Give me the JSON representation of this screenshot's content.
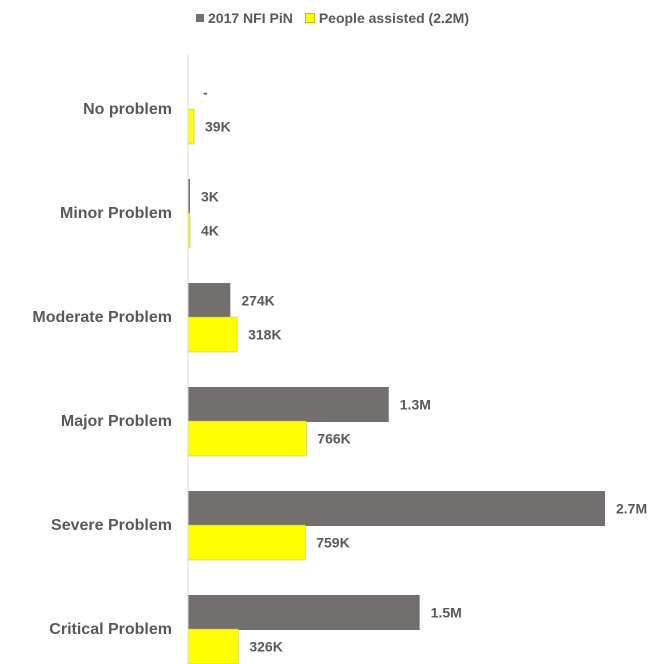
{
  "chart_data": {
    "type": "bar",
    "orientation": "horizontal",
    "categories": [
      "No problem",
      "Minor Problem",
      "Moderate Problem",
      "Major Problem",
      "Severe Problem",
      "Critical Problem"
    ],
    "series": [
      {
        "name": "2017 NFI PiN",
        "color": "#736f6e",
        "values": [
          0,
          3000,
          274000,
          1300000,
          2700000,
          1500000
        ],
        "labels": [
          "-",
          "3K",
          "274K",
          "1.3M",
          "2.7M",
          "1.5M"
        ]
      },
      {
        "name": "People assisted (2.2M)",
        "color": "#ffff00",
        "values": [
          39000,
          4000,
          318000,
          766000,
          759000,
          326000
        ],
        "labels": [
          "39K",
          "4K",
          "318K",
          "766K",
          "759K",
          "326K"
        ]
      }
    ],
    "xlim": [
      0,
      2700000
    ],
    "legend_position": "top",
    "grid": false
  }
}
